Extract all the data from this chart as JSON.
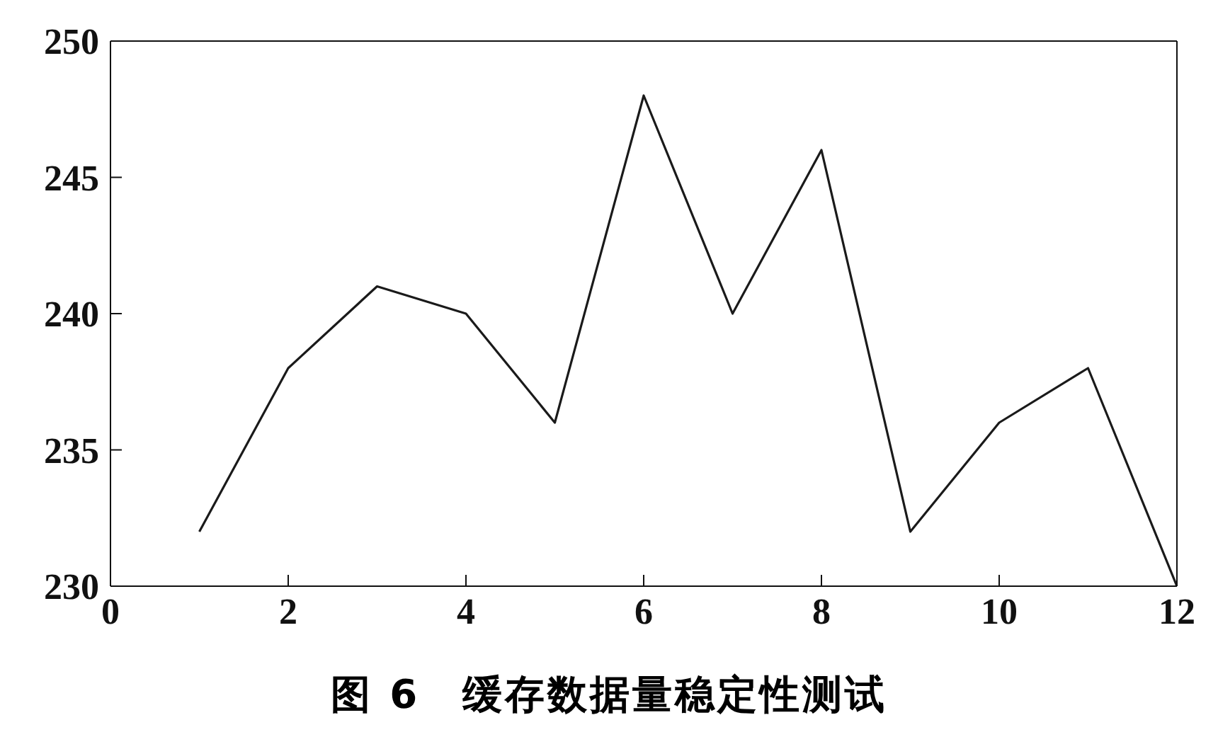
{
  "chart_data": {
    "type": "line",
    "title": "图 6　缓存数据量稳定性测试",
    "x": [
      1,
      2,
      3,
      4,
      5,
      6,
      7,
      8,
      9,
      10,
      11,
      12
    ],
    "series": [
      {
        "color": "#1a1a1a",
        "values": [
          232,
          238,
          241,
          240,
          236,
          248,
          240,
          246,
          232,
          236,
          238,
          230
        ]
      }
    ],
    "xlim": [
      0,
      12
    ],
    "xticks": [
      0,
      2,
      4,
      6,
      8,
      10,
      12
    ],
    "ylim": [
      230,
      250
    ],
    "yticks": [
      230,
      235,
      240,
      245,
      250
    ],
    "marker": "none",
    "line_style": "solid"
  }
}
